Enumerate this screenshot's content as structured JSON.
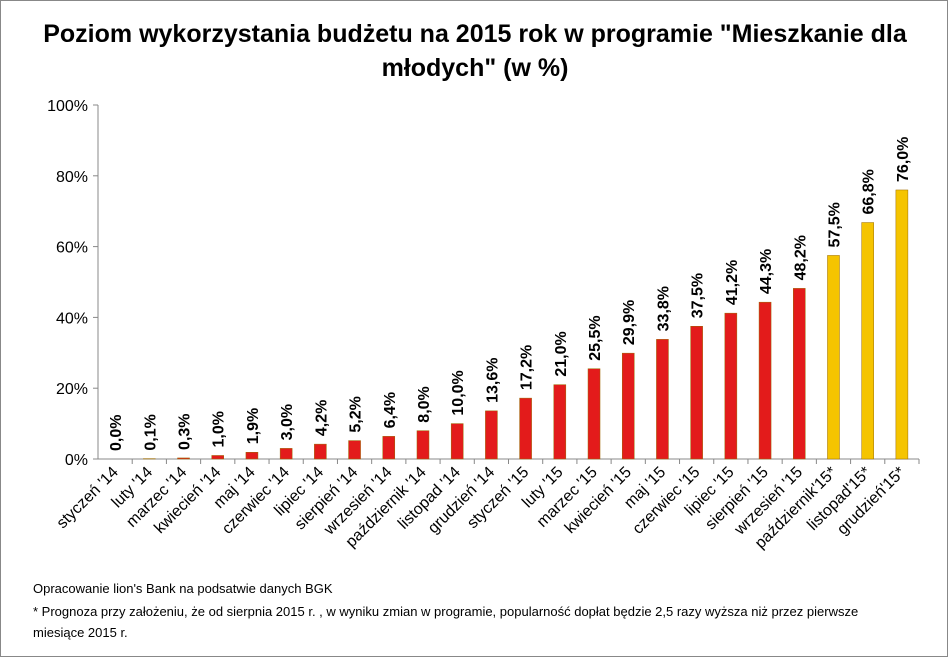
{
  "chart_data": {
    "type": "bar",
    "title": "Poziom wykorzystania budżetu na 2015 rok w programie \"Mieszkanie dla młodych\" (w %)",
    "categories": [
      "styczeń '14",
      "luty '14",
      "marzec '14",
      "kwiecień '14",
      "maj '14",
      "czerwiec '14",
      "lipiec '14",
      "sierpień '14",
      "wrzesień '14",
      "październik '14",
      "listopad '14",
      "grudzień '14",
      "styczeń '15",
      "luty '15",
      "marzec '15",
      "kwiecień '15",
      "maj '15",
      "czerwiec '15",
      "lipiec '15",
      "sierpień '15",
      "wrzesień '15",
      "październik'15*",
      "listopad'15*",
      "grudzień'15*"
    ],
    "values": [
      0.0,
      0.1,
      0.3,
      1.0,
      1.9,
      3.0,
      4.2,
      5.2,
      6.4,
      8.0,
      10.0,
      13.6,
      17.2,
      21.0,
      25.5,
      29.9,
      33.8,
      37.5,
      41.2,
      44.3,
      48.2,
      57.5,
      66.8,
      76.0
    ],
    "value_labels": [
      "0,0%",
      "0,1%",
      "0,3%",
      "1,0%",
      "1,9%",
      "3,0%",
      "4,2%",
      "5,2%",
      "6,4%",
      "8,0%",
      "10,0%",
      "13,6%",
      "17,2%",
      "21,0%",
      "25,5%",
      "29,9%",
      "33,8%",
      "37,5%",
      "41,2%",
      "44,3%",
      "48,2%",
      "57,5%",
      "66,8%",
      "76,0%"
    ],
    "colors": [
      "#e31b1b",
      "#e31b1b",
      "#e31b1b",
      "#e31b1b",
      "#e31b1b",
      "#e31b1b",
      "#e31b1b",
      "#e31b1b",
      "#e31b1b",
      "#e31b1b",
      "#e31b1b",
      "#e31b1b",
      "#e31b1b",
      "#e31b1b",
      "#e31b1b",
      "#e31b1b",
      "#e31b1b",
      "#e31b1b",
      "#e31b1b",
      "#e31b1b",
      "#e31b1b",
      "#f5c400",
      "#f5c400",
      "#f5c400"
    ],
    "ylim": [
      0,
      100
    ],
    "yticks": [
      {
        "value": 0,
        "label": "0%"
      },
      {
        "value": 20,
        "label": "20%"
      },
      {
        "value": 40,
        "label": "40%"
      },
      {
        "value": 60,
        "label": "60%"
      },
      {
        "value": 80,
        "label": "80%"
      },
      {
        "value": 100,
        "label": "100%"
      }
    ],
    "grid": false
  },
  "notes": [
    "Opracowanie lion's Bank na podsatwie danych BGK",
    "* Prognoza przy założeniu, że od sierpnia 2015 r. , w wyniku zmian w programie, popularność dopłat będzie 2,5 razy wyższa niż przez pierwsze miesiące  2015 r."
  ]
}
